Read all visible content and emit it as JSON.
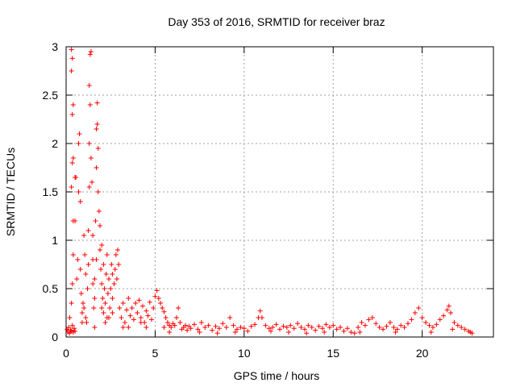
{
  "chart_data": {
    "type": "scatter",
    "title": "Day 353 of 2016, SRMTID for receiver braz",
    "xlabel": "GPS time / hours",
    "ylabel": "SRMTID / TECUs",
    "xlim": [
      0,
      24
    ],
    "ylim": [
      0,
      3
    ],
    "xticks": [
      0,
      5,
      10,
      15,
      20
    ],
    "yticks": [
      0,
      0.5,
      1,
      1.5,
      2,
      2.5,
      3
    ],
    "xtick_labels": [
      "0",
      "5",
      "10",
      "15",
      "20"
    ],
    "ytick_labels": [
      "0",
      "0.5",
      "1",
      "1.5",
      "2",
      "2.5",
      "3"
    ],
    "grid": true,
    "marker": "+",
    "color": "#ff0000",
    "series": [
      {
        "name": "SRMTID",
        "points": [
          [
            0.05,
            0.08
          ],
          [
            0.1,
            0.05
          ],
          [
            0.15,
            0.1
          ],
          [
            0.2,
            0.04
          ],
          [
            0.25,
            0.07
          ],
          [
            0.3,
            0.06
          ],
          [
            0.35,
            0.12
          ],
          [
            0.4,
            0.05
          ],
          [
            0.45,
            0.09
          ],
          [
            0.5,
            0.06
          ],
          [
            0.2,
            0.2
          ],
          [
            0.3,
            0.35
          ],
          [
            0.35,
            0.55
          ],
          [
            0.4,
            0.85
          ],
          [
            0.4,
            1.2
          ],
          [
            0.3,
            1.55
          ],
          [
            0.35,
            1.8
          ],
          [
            0.4,
            1.85
          ],
          [
            0.35,
            2.3
          ],
          [
            0.4,
            2.4
          ],
          [
            0.3,
            2.75
          ],
          [
            0.35,
            2.88
          ],
          [
            0.3,
            2.97
          ],
          [
            0.5,
            1.65
          ],
          [
            0.55,
            1.65
          ],
          [
            0.5,
            1.2
          ],
          [
            0.6,
            0.6
          ],
          [
            0.65,
            0.8
          ],
          [
            0.7,
            1.5
          ],
          [
            0.7,
            2.0
          ],
          [
            0.75,
            2.1
          ],
          [
            0.8,
            1.4
          ],
          [
            0.8,
            0.7
          ],
          [
            0.85,
            0.45
          ],
          [
            0.9,
            0.25
          ],
          [
            0.9,
            0.15
          ],
          [
            0.95,
            0.35
          ],
          [
            1.0,
            0.3
          ],
          [
            1.0,
            1.05
          ],
          [
            1.05,
            0.85
          ],
          [
            1.1,
            0.65
          ],
          [
            1.1,
            0.2
          ],
          [
            1.15,
            0.15
          ],
          [
            1.2,
            0.5
          ],
          [
            1.25,
            0.75
          ],
          [
            1.25,
            1.1
          ],
          [
            1.3,
            1.55
          ],
          [
            1.3,
            2.0
          ],
          [
            1.35,
            2.4
          ],
          [
            1.3,
            2.6
          ],
          [
            1.35,
            2.92
          ],
          [
            1.4,
            2.95
          ],
          [
            1.4,
            1.85
          ],
          [
            1.45,
            1.6
          ],
          [
            1.5,
            1.05
          ],
          [
            1.5,
            0.8
          ],
          [
            1.55,
            0.3
          ],
          [
            1.6,
            0.1
          ],
          [
            1.6,
            0.6
          ],
          [
            1.65,
            1.2
          ],
          [
            1.7,
            1.75
          ],
          [
            1.7,
            2.15
          ],
          [
            1.75,
            2.42
          ],
          [
            1.75,
            2.2
          ],
          [
            1.8,
            1.95
          ],
          [
            1.8,
            1.5
          ],
          [
            1.85,
            1.3
          ],
          [
            1.9,
            1.15
          ],
          [
            1.9,
            0.9
          ],
          [
            1.95,
            0.7
          ],
          [
            2.0,
            0.95
          ],
          [
            2.0,
            0.55
          ],
          [
            2.05,
            0.4
          ],
          [
            2.1,
            0.75
          ],
          [
            2.1,
            0.25
          ],
          [
            2.15,
            0.5
          ],
          [
            2.2,
            0.35
          ],
          [
            2.25,
            0.65
          ],
          [
            2.3,
            0.85
          ],
          [
            2.3,
            0.2
          ],
          [
            2.35,
            0.45
          ],
          [
            2.4,
            0.6
          ],
          [
            2.45,
            0.3
          ],
          [
            2.5,
            0.5
          ],
          [
            2.55,
            0.75
          ],
          [
            2.6,
            0.65
          ],
          [
            2.6,
            0.4
          ],
          [
            2.7,
            0.55
          ],
          [
            2.75,
            0.7
          ],
          [
            2.8,
            0.85
          ],
          [
            2.85,
            0.6
          ],
          [
            2.9,
            0.9
          ],
          [
            2.95,
            0.75
          ],
          [
            1.5,
            0.55
          ],
          [
            1.6,
            0.4
          ],
          [
            1.7,
            0.8
          ],
          [
            2.0,
            0.3
          ],
          [
            2.2,
            0.15
          ],
          [
            2.4,
            0.2
          ],
          [
            2.6,
            0.25
          ],
          [
            3.0,
            0.3
          ],
          [
            3.1,
            0.2
          ],
          [
            3.2,
            0.35
          ],
          [
            3.3,
            0.15
          ],
          [
            3.4,
            0.28
          ],
          [
            3.5,
            0.4
          ],
          [
            3.6,
            0.22
          ],
          [
            3.7,
            0.3
          ],
          [
            3.8,
            0.18
          ],
          [
            3.9,
            0.35
          ],
          [
            4.0,
            0.25
          ],
          [
            4.1,
            0.38
          ],
          [
            4.2,
            0.2
          ],
          [
            4.3,
            0.32
          ],
          [
            4.4,
            0.15
          ],
          [
            4.5,
            0.27
          ],
          [
            4.6,
            0.22
          ],
          [
            4.7,
            0.36
          ],
          [
            4.8,
            0.18
          ],
          [
            4.9,
            0.3
          ],
          [
            5.0,
            0.42
          ],
          [
            5.1,
            0.48
          ],
          [
            5.2,
            0.4
          ],
          [
            5.3,
            0.35
          ],
          [
            5.4,
            0.3
          ],
          [
            5.5,
            0.26
          ],
          [
            5.6,
            0.2
          ],
          [
            5.7,
            0.15
          ],
          [
            5.8,
            0.12
          ],
          [
            5.9,
            0.1
          ],
          [
            6.0,
            0.14
          ],
          [
            6.1,
            0.12
          ],
          [
            6.2,
            0.2
          ],
          [
            6.3,
            0.3
          ],
          [
            6.4,
            0.15
          ],
          [
            6.5,
            0.08
          ],
          [
            6.6,
            0.1
          ],
          [
            6.7,
            0.12
          ],
          [
            6.8,
            0.07
          ],
          [
            6.9,
            0.11
          ],
          [
            7.0,
            0.09
          ],
          [
            7.2,
            0.13
          ],
          [
            7.4,
            0.08
          ],
          [
            7.6,
            0.15
          ],
          [
            7.8,
            0.1
          ],
          [
            8.0,
            0.12
          ],
          [
            8.2,
            0.07
          ],
          [
            8.4,
            0.11
          ],
          [
            8.6,
            0.09
          ],
          [
            8.8,
            0.14
          ],
          [
            9.0,
            0.1
          ],
          [
            9.2,
            0.2
          ],
          [
            9.4,
            0.12
          ],
          [
            9.6,
            0.08
          ],
          [
            9.8,
            0.1
          ],
          [
            10.0,
            0.09
          ],
          [
            10.2,
            0.06
          ],
          [
            10.4,
            0.11
          ],
          [
            10.6,
            0.13
          ],
          [
            10.8,
            0.2
          ],
          [
            10.9,
            0.27
          ],
          [
            11.0,
            0.2
          ],
          [
            11.2,
            0.12
          ],
          [
            11.4,
            0.09
          ],
          [
            11.6,
            0.1
          ],
          [
            11.8,
            0.13
          ],
          [
            12.0,
            0.08
          ],
          [
            12.2,
            0.11
          ],
          [
            12.4,
            0.1
          ],
          [
            12.6,
            0.12
          ],
          [
            12.8,
            0.09
          ],
          [
            13.0,
            0.14
          ],
          [
            13.2,
            0.1
          ],
          [
            13.4,
            0.08
          ],
          [
            13.6,
            0.12
          ],
          [
            13.8,
            0.1
          ],
          [
            14.0,
            0.07
          ],
          [
            14.2,
            0.11
          ],
          [
            14.4,
            0.09
          ],
          [
            14.6,
            0.13
          ],
          [
            14.8,
            0.1
          ],
          [
            15.0,
            0.12
          ],
          [
            15.2,
            0.08
          ],
          [
            15.4,
            0.1
          ],
          [
            15.6,
            0.06
          ],
          [
            15.8,
            0.09
          ],
          [
            16.0,
            0.05
          ],
          [
            16.2,
            0.04
          ],
          [
            16.4,
            0.1
          ],
          [
            16.6,
            0.15
          ],
          [
            16.8,
            0.12
          ],
          [
            17.0,
            0.18
          ],
          [
            17.2,
            0.2
          ],
          [
            17.4,
            0.14
          ],
          [
            17.6,
            0.1
          ],
          [
            17.8,
            0.08
          ],
          [
            18.0,
            0.11
          ],
          [
            18.2,
            0.15
          ],
          [
            18.4,
            0.1
          ],
          [
            18.6,
            0.08
          ],
          [
            18.8,
            0.12
          ],
          [
            19.0,
            0.1
          ],
          [
            19.2,
            0.14
          ],
          [
            19.4,
            0.18
          ],
          [
            19.6,
            0.25
          ],
          [
            19.8,
            0.3
          ],
          [
            20.0,
            0.2
          ],
          [
            20.2,
            0.15
          ],
          [
            20.4,
            0.12
          ],
          [
            20.6,
            0.1
          ],
          [
            20.8,
            0.13
          ],
          [
            21.0,
            0.18
          ],
          [
            21.2,
            0.22
          ],
          [
            21.4,
            0.28
          ],
          [
            21.5,
            0.32
          ],
          [
            21.6,
            0.25
          ],
          [
            21.8,
            0.15
          ],
          [
            22.0,
            0.12
          ],
          [
            22.2,
            0.1
          ],
          [
            22.4,
            0.08
          ],
          [
            22.6,
            0.06
          ],
          [
            22.7,
            0.05
          ],
          [
            22.8,
            0.04
          ],
          [
            3.5,
            0.1
          ],
          [
            4.5,
            0.1
          ],
          [
            5.5,
            0.1
          ],
          [
            7.5,
            0.05
          ],
          [
            9.5,
            0.05
          ],
          [
            12.5,
            0.05
          ],
          [
            14.5,
            0.05
          ],
          [
            16.5,
            0.05
          ],
          [
            18.5,
            0.05
          ],
          [
            20.5,
            0.05
          ],
          [
            21.7,
            0.08
          ],
          [
            3.2,
            0.1
          ],
          [
            4.2,
            0.15
          ],
          [
            5.8,
            0.05
          ],
          [
            8.5,
            0.04
          ],
          [
            11.5,
            0.06
          ],
          [
            13.5,
            0.04
          ]
        ]
      }
    ]
  }
}
